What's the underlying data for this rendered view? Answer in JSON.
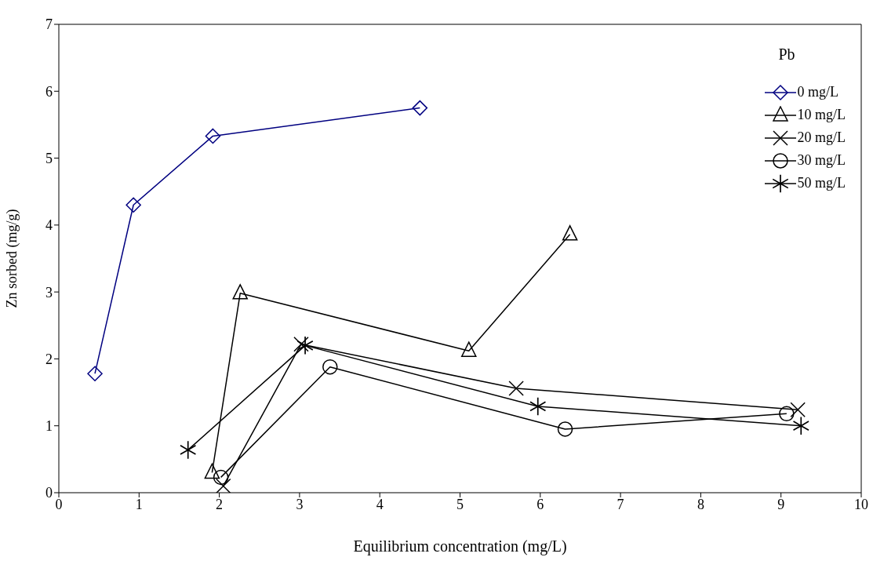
{
  "chart_data": {
    "type": "line",
    "xlabel": "Equilibrium concentration (mg/L)",
    "ylabel": "Zn sorbed (mg/g)",
    "legend_title": "Pb",
    "legend": "top right",
    "grid": false,
    "xlim": [
      0,
      10
    ],
    "xticks": [
      0,
      1,
      2,
      3,
      4,
      5,
      6,
      7,
      8,
      9,
      10
    ],
    "ylim": [
      0,
      7
    ],
    "yticks": [
      0,
      1,
      2,
      3,
      4,
      5,
      6,
      7
    ],
    "series": [
      {
        "name": "0 mg/L",
        "color": "#000080",
        "marker": "diamond",
        "x": [
          0.45,
          0.93,
          1.92,
          4.5
        ],
        "values": [
          1.78,
          4.3,
          5.33,
          5.75
        ]
      },
      {
        "name": "10 mg/L",
        "color": "#000000",
        "marker": "triangle",
        "x": [
          1.91,
          2.26,
          5.11,
          6.37
        ],
        "values": [
          0.3,
          2.98,
          2.12,
          3.86
        ]
      },
      {
        "name": "20 mg/L",
        "color": "#000000",
        "marker": "cross",
        "x": [
          2.05,
          3.02,
          5.7,
          9.21
        ],
        "values": [
          0.1,
          2.22,
          1.56,
          1.24
        ]
      },
      {
        "name": "30 mg/L",
        "color": "#000000",
        "marker": "circle",
        "x": [
          2.02,
          3.38,
          6.31,
          9.07
        ],
        "values": [
          0.23,
          1.88,
          0.95,
          1.18
        ]
      },
      {
        "name": "50 mg/L",
        "color": "#000000",
        "marker": "star",
        "x": [
          1.61,
          3.07,
          5.97,
          9.25
        ],
        "values": [
          0.64,
          2.2,
          1.29,
          1.0
        ]
      }
    ]
  }
}
